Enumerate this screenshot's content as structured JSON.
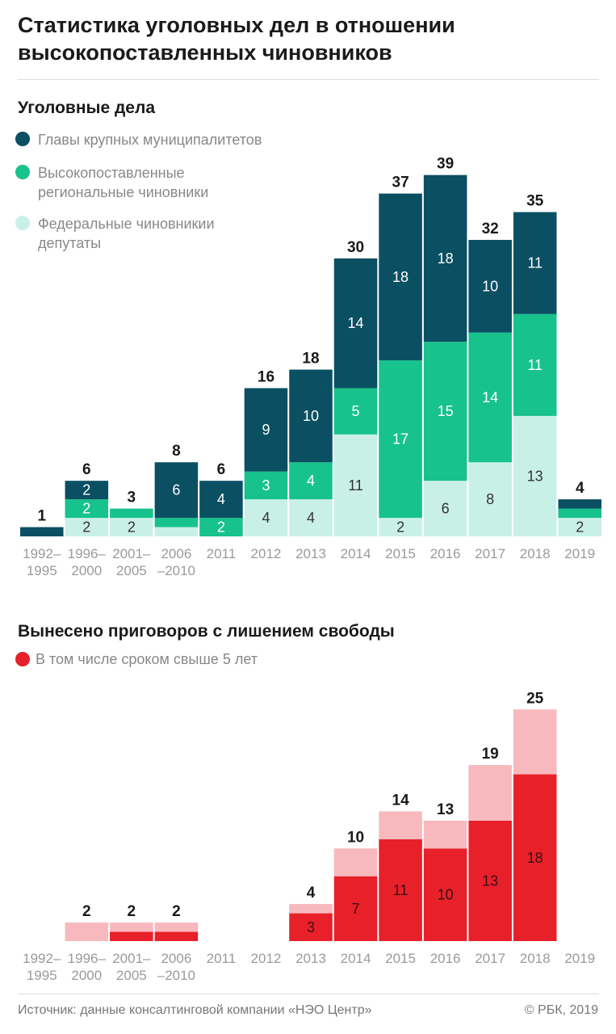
{
  "header": {
    "title": "Статистика уголовных дел в отношении\nвысокопоставленных чиновников"
  },
  "chart_data": [
    {
      "type": "bar",
      "stacked": true,
      "title": "Уголовные дела",
      "legend_reversed": true,
      "categories": [
        "1992–\n1995",
        "1996–\n2000",
        "2001–\n2005",
        "2006\n–2010",
        "2011",
        "2012",
        "2013",
        "2014",
        "2015",
        "2016",
        "2017",
        "2018",
        "2019"
      ],
      "series": [
        {
          "name": "Федеральные чиновникии\nдепутаты",
          "color": "#c9f0e6",
          "label_color": "#333333",
          "values": [
            0,
            2,
            2,
            1,
            0,
            4,
            4,
            11,
            2,
            6,
            8,
            13,
            2
          ],
          "value_labels": [
            null,
            "2",
            "2",
            null,
            null,
            "4",
            "4",
            "11",
            "2",
            "6",
            "8",
            "13",
            "2"
          ]
        },
        {
          "name": "Высокопоставленные\nрегиональные чиновники",
          "color": "#17c28c",
          "label_color": "#ffffff",
          "values": [
            0,
            2,
            1,
            1,
            2,
            3,
            4,
            5,
            17,
            15,
            14,
            11,
            1
          ],
          "value_labels": [
            null,
            "2",
            null,
            null,
            "2",
            "3",
            "4",
            "5",
            "17",
            "15",
            "14",
            "11",
            null
          ]
        },
        {
          "name": "Главы крупных муниципалитетов",
          "color": "#0b4f63",
          "label_color": "#ffffff",
          "values": [
            1,
            2,
            0,
            6,
            4,
            9,
            10,
            14,
            18,
            18,
            10,
            11,
            1
          ],
          "value_labels": [
            null,
            "2",
            null,
            "6",
            "4",
            "9",
            "10",
            "14",
            "18",
            "18",
            "10",
            "11",
            null
          ]
        }
      ],
      "totals": [
        1,
        6,
        3,
        8,
        6,
        16,
        18,
        30,
        37,
        39,
        32,
        35,
        4
      ]
    },
    {
      "type": "bar",
      "stacked": true,
      "title": "Вынесено приговоров с лишением свободы",
      "legend_reversed": false,
      "categories": [
        "1992–\n1995",
        "1996–\n2000",
        "2001–\n2005",
        "2006\n–2010",
        "2011",
        "2012",
        "2013",
        "2014",
        "2015",
        "2016",
        "2017",
        "2018",
        "2019"
      ],
      "series": [
        {
          "name": "В том числе сроком свыше 5 лет",
          "color": "#e8202a",
          "label_color": "#3a1010",
          "values": [
            null,
            0,
            1,
            1,
            null,
            null,
            3,
            7,
            11,
            10,
            13,
            18,
            null
          ],
          "value_labels": [
            null,
            null,
            null,
            null,
            null,
            null,
            "3",
            "7",
            "11",
            "10",
            "13",
            "18",
            null
          ]
        },
        {
          "color": "#f7b9bd",
          "label_color": "#3a1010",
          "values": [
            null,
            2,
            1,
            1,
            null,
            null,
            1,
            3,
            3,
            3,
            6,
            7,
            null
          ]
        }
      ],
      "totals": [
        null,
        2,
        2,
        2,
        null,
        null,
        4,
        10,
        14,
        13,
        19,
        25,
        null
      ]
    }
  ],
  "footer": {
    "source": "Источник: данные консалтинговой компании «НЭО Центр»",
    "copyright": "© РБК, 2019"
  }
}
